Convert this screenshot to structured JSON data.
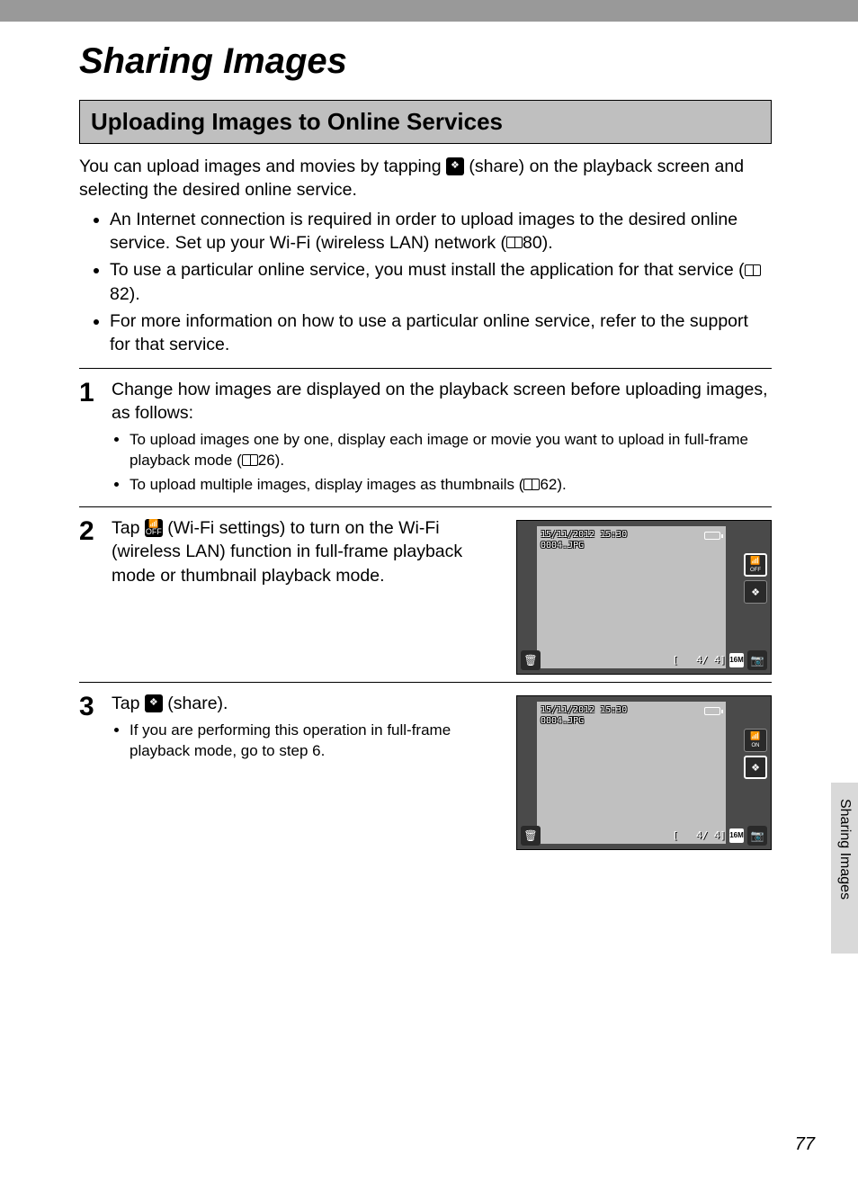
{
  "page": {
    "title": "Sharing Images",
    "section_heading": "Uploading Images to Online Services",
    "intro_before_icon": "You can upload images and movies by tapping ",
    "intro_after_icon": " (share) on the playback screen and selecting the desired online service.",
    "bullets": [
      {
        "text_before": "An Internet connection is required in order to upload images to the desired online service. Set up your Wi-Fi (wireless LAN) network (",
        "page_ref": "80",
        "text_after": ")."
      },
      {
        "text_before": "To use a particular online service, you must install the application for that service (",
        "page_ref": "82",
        "text_after": ")."
      },
      {
        "text_before": "For more information on how to use a particular online service, refer to the support for that service.",
        "page_ref": "",
        "text_after": ""
      }
    ],
    "page_number": "77",
    "side_tab": "Sharing Images"
  },
  "steps": [
    {
      "num": "1",
      "text": "Change how images are displayed on the playback screen before uploading images, as follows:",
      "sub": [
        {
          "before": "To upload images one by one, display each image or movie you want to upload in full-frame playback mode (",
          "ref": "26",
          "after": ")."
        },
        {
          "before": "To upload multiple images, display images as thumbnails (",
          "ref": "62",
          "after": ")."
        }
      ]
    },
    {
      "num": "2",
      "text_before": "Tap ",
      "text_after": " (Wi-Fi settings) to turn on the Wi-Fi (wireless LAN) function in full-frame playback mode or thumbnail playback mode.",
      "icon": "wifi"
    },
    {
      "num": "3",
      "text_before": "Tap ",
      "text_after": " (share).",
      "icon": "share",
      "sub": [
        {
          "before": "If you are performing this operation in full-frame playback mode, go to step 6.",
          "ref": "",
          "after": ""
        }
      ]
    }
  ],
  "lcd": {
    "timestamp": "15/11/2012 15:30",
    "filename": "0004.JPG",
    "counter_left": "[",
    "counter": "4/    4]",
    "badge": "16M",
    "wifi_off": "OFF",
    "wifi_on": "ON"
  },
  "colors": {
    "gray_bar": "#999999",
    "section_bg": "#bfbfbf",
    "lcd_frame": "#4a4a4a",
    "lcd_screen": "#c0c0c0",
    "side_tab_bg": "#d9d9d9"
  }
}
